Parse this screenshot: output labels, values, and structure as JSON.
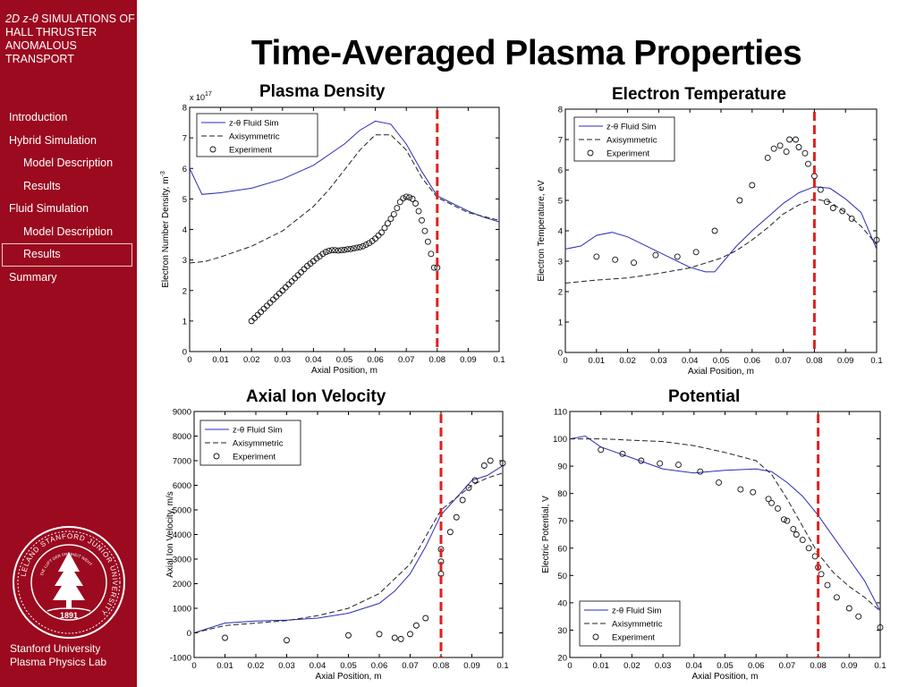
{
  "sidebar": {
    "deck_title_italic": "2D z-θ",
    "deck_title_rest": " SIMULATIONS OF HALL THRUSTER ANOMALOUS TRANSPORT",
    "nav": [
      {
        "label": "Introduction",
        "level": 1,
        "active": false
      },
      {
        "label": "Hybrid Simulation",
        "level": 1,
        "active": false
      },
      {
        "label": "Model Description",
        "level": 2,
        "active": false
      },
      {
        "label": "Results",
        "level": 2,
        "active": false
      },
      {
        "label": "Fluid Simulation",
        "level": 1,
        "active": false
      },
      {
        "label": "Model Description",
        "level": 2,
        "active": false
      },
      {
        "label": "Results",
        "level": 2,
        "active": true
      },
      {
        "label": "Summary",
        "level": 1,
        "active": false
      }
    ],
    "seal": {
      "top_text": "LELAND STANFORD JUNIOR UNIVERSITY",
      "motto": "DIE LUFT DER FREIHEIT WEHT",
      "year": "1891"
    },
    "footer_line1": "Stanford University",
    "footer_line2": "Plasma Physics Lab"
  },
  "slide_title": "Time-Averaged Plasma Properties",
  "colors": {
    "sidebar": "#9b0a1f",
    "fluid_sim": "#2b2bb8",
    "axisymmetric": "#222222",
    "marker": "#7a1f1f",
    "vline": "#e02020"
  },
  "chart_data": [
    {
      "type": "line",
      "title": "Plasma Density",
      "xlabel": "Axial Position, m",
      "ylabel": "Electron Number Density, m",
      "ylabel_sup": "-3",
      "multiplier_base": "x 10",
      "multiplier_exp": "17",
      "xlim": [
        0,
        0.1
      ],
      "ylim": [
        0,
        8
      ],
      "xticks": [
        "0",
        "0.01",
        "0.02",
        "0.03",
        "0.04",
        "0.05",
        "0.06",
        "0.07",
        "0.08",
        "0.09",
        "0.1"
      ],
      "yticks": [
        "0",
        "1",
        "2",
        "3",
        "4",
        "5",
        "6",
        "7",
        "8"
      ],
      "vline": 0.08,
      "legend_position": "top-left",
      "series": [
        {
          "name": "z-θ Fluid Sim",
          "style": "solid",
          "x": [
            0,
            0.004,
            0.01,
            0.02,
            0.03,
            0.04,
            0.05,
            0.055,
            0.06,
            0.065,
            0.07,
            0.075,
            0.08,
            0.085,
            0.09,
            0.095,
            0.1
          ],
          "y": [
            6.0,
            5.15,
            5.2,
            5.35,
            5.65,
            6.1,
            6.8,
            7.25,
            7.55,
            7.45,
            6.8,
            5.9,
            5.1,
            4.85,
            4.6,
            4.4,
            4.25
          ]
        },
        {
          "name": "Axisymmetric",
          "style": "dashed",
          "x": [
            0,
            0.005,
            0.01,
            0.02,
            0.03,
            0.04,
            0.045,
            0.05,
            0.055,
            0.06,
            0.065,
            0.07,
            0.075,
            0.08,
            0.085,
            0.09,
            0.1
          ],
          "y": [
            2.9,
            2.95,
            3.1,
            3.45,
            3.95,
            4.75,
            5.3,
            5.95,
            6.6,
            7.1,
            7.1,
            6.6,
            5.7,
            5.05,
            4.8,
            4.55,
            4.3
          ]
        },
        {
          "name": "Experiment",
          "style": "marker",
          "x": [
            0.02,
            0.021,
            0.022,
            0.023,
            0.024,
            0.025,
            0.026,
            0.027,
            0.028,
            0.029,
            0.03,
            0.031,
            0.032,
            0.033,
            0.034,
            0.035,
            0.036,
            0.037,
            0.038,
            0.039,
            0.04,
            0.041,
            0.042,
            0.043,
            0.044,
            0.045,
            0.046,
            0.047,
            0.048,
            0.049,
            0.05,
            0.051,
            0.052,
            0.053,
            0.054,
            0.055,
            0.056,
            0.057,
            0.058,
            0.059,
            0.06,
            0.061,
            0.062,
            0.063,
            0.064,
            0.065,
            0.066,
            0.067,
            0.068,
            0.069,
            0.07,
            0.071,
            0.072,
            0.073,
            0.074,
            0.075,
            0.076,
            0.077,
            0.078,
            0.079,
            0.08
          ],
          "y": [
            1.0,
            1.1,
            1.2,
            1.3,
            1.4,
            1.5,
            1.6,
            1.7,
            1.8,
            1.9,
            2.0,
            2.1,
            2.2,
            2.3,
            2.4,
            2.5,
            2.6,
            2.7,
            2.8,
            2.88,
            2.96,
            3.05,
            3.12,
            3.2,
            3.26,
            3.3,
            3.32,
            3.32,
            3.31,
            3.32,
            3.33,
            3.35,
            3.36,
            3.38,
            3.4,
            3.42,
            3.45,
            3.5,
            3.55,
            3.62,
            3.7,
            3.8,
            3.9,
            4.05,
            4.2,
            4.35,
            4.5,
            4.7,
            4.9,
            5.02,
            5.07,
            5.05,
            5.0,
            4.85,
            4.6,
            4.3,
            3.95,
            3.6,
            3.2,
            2.75,
            2.75
          ]
        }
      ]
    },
    {
      "type": "line",
      "title": "Electron Temperature",
      "xlabel": "Axial Position, m",
      "ylabel": "Electron Temperature, eV",
      "xlim": [
        0,
        0.1
      ],
      "ylim": [
        0,
        8
      ],
      "xticks": [
        "0",
        "0.01",
        "0.02",
        "0.03",
        "0.04",
        "0.05",
        "0.06",
        "0.07",
        "0.08",
        "0.09",
        "0.1"
      ],
      "yticks": [
        "0",
        "1",
        "2",
        "3",
        "4",
        "5",
        "6",
        "7",
        "8"
      ],
      "vline": 0.08,
      "legend_position": "top-left",
      "series": [
        {
          "name": "z-θ Fluid Sim",
          "style": "solid",
          "x": [
            0,
            0.005,
            0.01,
            0.015,
            0.02,
            0.025,
            0.03,
            0.035,
            0.04,
            0.045,
            0.048,
            0.05,
            0.055,
            0.06,
            0.065,
            0.07,
            0.075,
            0.08,
            0.085,
            0.09,
            0.095,
            0.1
          ],
          "y": [
            3.4,
            3.5,
            3.85,
            3.95,
            3.8,
            3.55,
            3.3,
            3.05,
            2.8,
            2.65,
            2.65,
            2.9,
            3.5,
            4.0,
            4.45,
            4.9,
            5.25,
            5.45,
            5.4,
            5.05,
            4.6,
            3.4
          ]
        },
        {
          "name": "Axisymmetric",
          "style": "dashed",
          "x": [
            0,
            0.01,
            0.02,
            0.03,
            0.04,
            0.05,
            0.055,
            0.06,
            0.065,
            0.07,
            0.075,
            0.08,
            0.085,
            0.09,
            0.095,
            0.1
          ],
          "y": [
            2.28,
            2.38,
            2.45,
            2.6,
            2.78,
            3.1,
            3.35,
            3.7,
            4.1,
            4.55,
            4.85,
            5.05,
            4.95,
            4.6,
            4.15,
            3.55
          ]
        },
        {
          "name": "Experiment",
          "style": "marker",
          "x": [
            0.01,
            0.016,
            0.022,
            0.029,
            0.036,
            0.042,
            0.048,
            0.056,
            0.06,
            0.065,
            0.067,
            0.069,
            0.071,
            0.072,
            0.074,
            0.075,
            0.077,
            0.078,
            0.08,
            0.082,
            0.084,
            0.086,
            0.089,
            0.092,
            0.1
          ],
          "y": [
            3.15,
            3.05,
            2.95,
            3.2,
            3.15,
            3.3,
            4.0,
            5.0,
            5.5,
            6.4,
            6.7,
            6.8,
            6.6,
            7.0,
            7.0,
            6.75,
            6.55,
            6.2,
            5.8,
            5.35,
            4.95,
            4.75,
            4.65,
            4.4,
            3.7
          ]
        }
      ]
    },
    {
      "type": "line",
      "title": "Axial Ion Velocity",
      "xlabel": "Axial Position, m",
      "ylabel": "Axial Ion Velocity, m/s",
      "xlim": [
        0,
        0.1
      ],
      "ylim": [
        -1000,
        9000
      ],
      "xticks": [
        "0",
        "0.01",
        "0.02",
        "0.03",
        "0.04",
        "0.05",
        "0.06",
        "0.07",
        "0.08",
        "0.09",
        "0.1"
      ],
      "yticks": [
        "-1000",
        "0",
        "1000",
        "2000",
        "3000",
        "4000",
        "5000",
        "6000",
        "7000",
        "8000",
        "9000"
      ],
      "vline": 0.08,
      "legend_position": "top-left",
      "series": [
        {
          "name": "z-θ Fluid Sim",
          "style": "solid",
          "x": [
            0,
            0.01,
            0.02,
            0.03,
            0.04,
            0.05,
            0.06,
            0.065,
            0.07,
            0.075,
            0.08,
            0.085,
            0.09,
            0.095,
            0.1
          ],
          "y": [
            0,
            400,
            480,
            520,
            600,
            800,
            1200,
            1700,
            2400,
            3500,
            4800,
            5500,
            6200,
            6400,
            6800
          ]
        },
        {
          "name": "Axisymmetric",
          "style": "dashed",
          "x": [
            0,
            0.01,
            0.02,
            0.03,
            0.04,
            0.05,
            0.06,
            0.065,
            0.07,
            0.075,
            0.08,
            0.085,
            0.09,
            0.095,
            0.1
          ],
          "y": [
            0,
            300,
            400,
            500,
            700,
            1000,
            1600,
            2200,
            2800,
            3900,
            5000,
            5500,
            6000,
            6300,
            6500
          ]
        },
        {
          "name": "Experiment",
          "style": "marker",
          "x": [
            0.01,
            0.03,
            0.05,
            0.06,
            0.065,
            0.067,
            0.07,
            0.072,
            0.075,
            0.08,
            0.08,
            0.08,
            0.083,
            0.085,
            0.087,
            0.089,
            0.091,
            0.094,
            0.096,
            0.1
          ],
          "y": [
            -200,
            -300,
            -100,
            -50,
            -200,
            -250,
            -50,
            300,
            600,
            2400,
            2900,
            3400,
            4100,
            4700,
            5400,
            5900,
            6200,
            6800,
            7000,
            6900
          ]
        }
      ]
    },
    {
      "type": "line",
      "title": "Potential",
      "xlabel": "Axial Position, m",
      "ylabel": "Electric Potential, V",
      "xlim": [
        0,
        0.1
      ],
      "ylim": [
        20,
        110
      ],
      "xticks": [
        "0",
        "0.01",
        "0.02",
        "0.03",
        "0.04",
        "0.05",
        "0.06",
        "0.07",
        "0.08",
        "0.09",
        "0.1"
      ],
      "yticks": [
        "20",
        "30",
        "40",
        "50",
        "60",
        "70",
        "80",
        "90",
        "100",
        "110"
      ],
      "vline": 0.08,
      "legend_position": "bottom-left",
      "series": [
        {
          "name": "z-θ Fluid Sim",
          "style": "solid",
          "x": [
            0,
            0.005,
            0.01,
            0.02,
            0.03,
            0.04,
            0.05,
            0.06,
            0.065,
            0.07,
            0.075,
            0.08,
            0.085,
            0.09,
            0.095,
            0.1
          ],
          "y": [
            100,
            101,
            97,
            93,
            89,
            87.5,
            88.5,
            89,
            88,
            84,
            79,
            72,
            64,
            56,
            48,
            37
          ]
        },
        {
          "name": "Axisymmetric",
          "style": "dashed",
          "x": [
            0,
            0.01,
            0.02,
            0.03,
            0.04,
            0.05,
            0.06,
            0.065,
            0.07,
            0.075,
            0.08,
            0.085,
            0.09,
            0.095,
            0.1
          ],
          "y": [
            100,
            100,
            99.5,
            99,
            97.5,
            95,
            92,
            87,
            78,
            68,
            58,
            51,
            46,
            42,
            37
          ]
        },
        {
          "name": "Experiment",
          "style": "marker",
          "x": [
            0.01,
            0.017,
            0.023,
            0.029,
            0.035,
            0.042,
            0.048,
            0.055,
            0.059,
            0.064,
            0.065,
            0.067,
            0.069,
            0.07,
            0.072,
            0.073,
            0.075,
            0.077,
            0.079,
            0.08,
            0.081,
            0.083,
            0.086,
            0.09,
            0.093,
            0.1
          ],
          "y": [
            96,
            94.5,
            92,
            91,
            90.5,
            88,
            84,
            81.5,
            80.5,
            78,
            76.5,
            74.5,
            70.5,
            70,
            67,
            65,
            63,
            60,
            57,
            53,
            50.5,
            46.5,
            42,
            38,
            35,
            31
          ]
        }
      ]
    }
  ]
}
